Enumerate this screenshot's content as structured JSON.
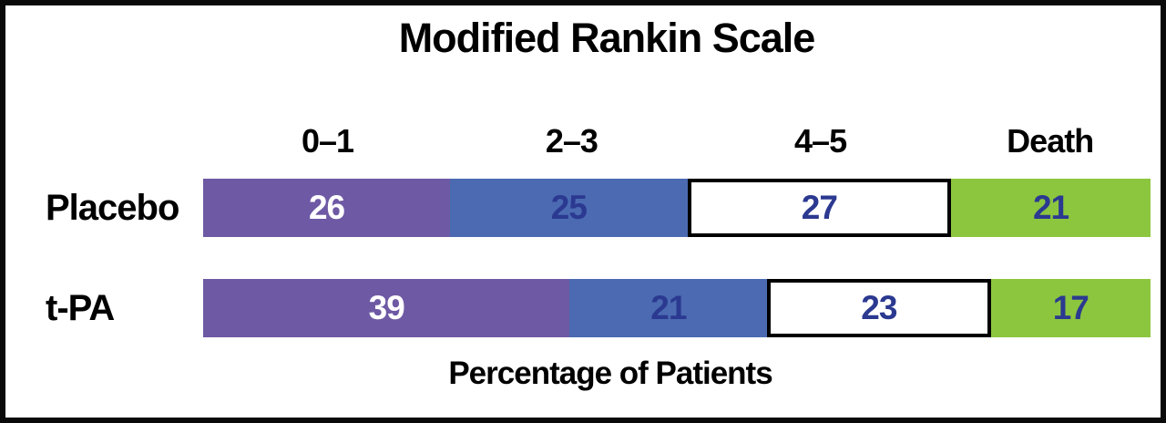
{
  "chart_data": {
    "type": "bar",
    "orientation": "horizontal",
    "stacked": true,
    "title": "Modified Rankin Scale",
    "xlabel": "Percentage of Patients",
    "categories": [
      "0–1",
      "2–3",
      "4–5",
      "Death"
    ],
    "series": [
      {
        "name": "Placebo",
        "values": [
          26,
          25,
          27,
          21
        ]
      },
      {
        "name": "t-PA",
        "values": [
          39,
          21,
          23,
          17
        ]
      }
    ],
    "segment_colors": [
      "#6E59A4",
      "#4B6AB2",
      "#FFFFFF",
      "#8CC63F"
    ],
    "value_label_colors": [
      "#FFFFFF",
      "#2B3990",
      "#2B3990",
      "#2B3990"
    ],
    "outlined_segment_index": 2,
    "axis_range": [
      0,
      100
    ],
    "grid": false,
    "legend_position": "top-as-column-headers",
    "frame_color": "#0A0A0A"
  }
}
